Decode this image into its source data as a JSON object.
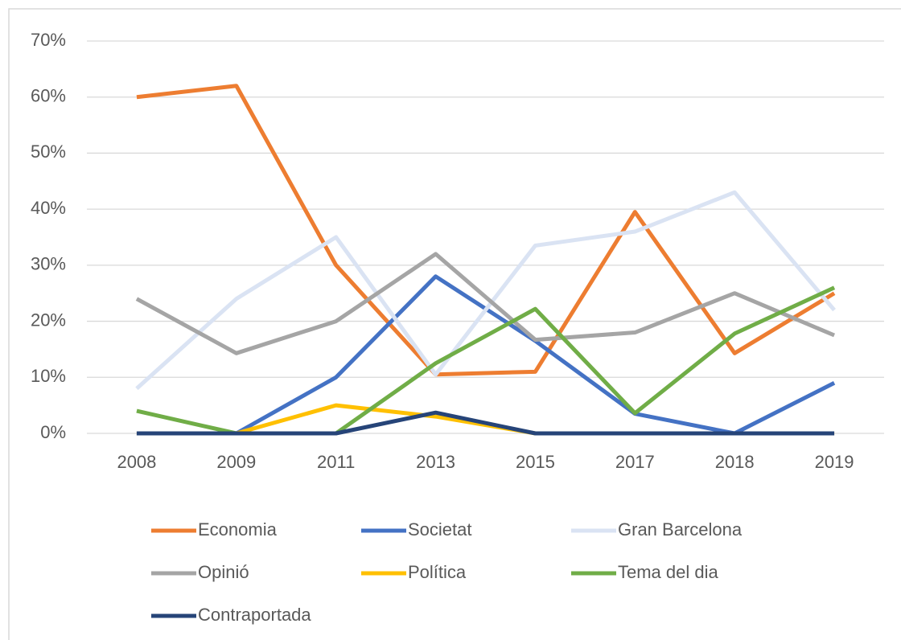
{
  "chart_data": {
    "type": "line",
    "categories": [
      "2008",
      "2009",
      "2011",
      "2013",
      "2015",
      "2017",
      "2018",
      "2019"
    ],
    "series": [
      {
        "name": "Economia",
        "color": "#ed7d31",
        "values": [
          60,
          62,
          30,
          10.5,
          11,
          39.5,
          14.3,
          25
        ]
      },
      {
        "name": "Societat",
        "color": "#4472c4",
        "values": [
          0,
          0,
          10,
          28,
          16.5,
          3.5,
          0,
          9
        ]
      },
      {
        "name": "Gran Barcelona",
        "color": "#dae3f3",
        "values": [
          8,
          24,
          35,
          10.5,
          33.5,
          36,
          43,
          22
        ]
      },
      {
        "name": "Opinió",
        "color": "#a5a5a5",
        "values": [
          24,
          14.3,
          20,
          32,
          16.7,
          18,
          25,
          17.5
        ]
      },
      {
        "name": "Política",
        "color": "#ffc000",
        "values": [
          0,
          0,
          5,
          3,
          0,
          0,
          0,
          0
        ]
      },
      {
        "name": "Tema del dia",
        "color": "#70ad47",
        "values": [
          4,
          0,
          0,
          12.5,
          22.2,
          3.6,
          17.8,
          26
        ]
      },
      {
        "name": "Contraportada",
        "color": "#264478",
        "values": [
          0,
          0,
          0,
          3.7,
          0,
          0,
          0,
          0
        ]
      }
    ],
    "ylim": [
      0,
      70
    ],
    "yticks": [
      {
        "value": 0,
        "label": "0%"
      },
      {
        "value": 10,
        "label": "10%"
      },
      {
        "value": 20,
        "label": "20%"
      },
      {
        "value": 30,
        "label": "30%"
      },
      {
        "value": 40,
        "label": "40%"
      },
      {
        "value": 50,
        "label": "50%"
      },
      {
        "value": 60,
        "label": "60%"
      },
      {
        "value": 70,
        "label": "70%"
      }
    ],
    "grid": true,
    "legend": "bottom"
  }
}
